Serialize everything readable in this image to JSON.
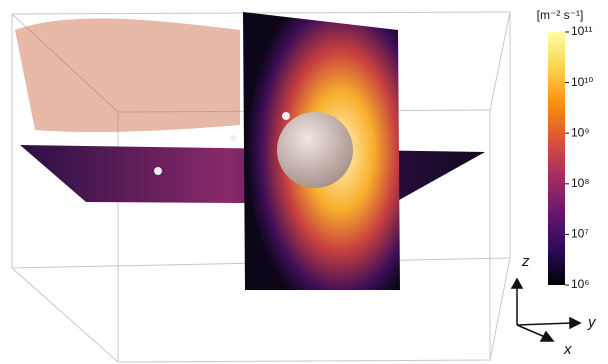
{
  "chart_data": {
    "type": "colorbar",
    "unit": "[m⁻² s⁻¹]",
    "scale": "log",
    "lim": [
      1000000,
      100000000000
    ],
    "ticks": [
      {
        "value": 100000000000,
        "label": "10¹¹"
      },
      {
        "value": 10000000000,
        "label": "10¹⁰"
      },
      {
        "value": 1000000000,
        "label": "10⁹"
      },
      {
        "value": 100000000,
        "label": "10⁸"
      },
      {
        "value": 10000000,
        "label": "10⁷"
      },
      {
        "value": 1000000,
        "label": "10⁶"
      }
    ],
    "colors": [
      "#000004",
      "#2d0b59",
      "#6a176e",
      "#a52c60",
      "#dd513a",
      "#f98e09",
      "#fbd34d",
      "#fcffa4"
    ],
    "axis_labels": {
      "z": "z",
      "y": "y",
      "x": "x"
    }
  }
}
